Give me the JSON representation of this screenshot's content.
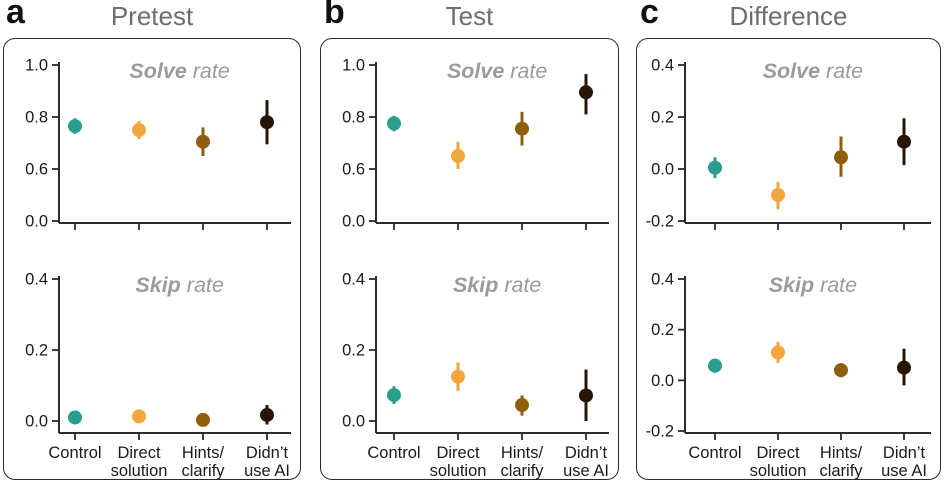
{
  "chart_data": {
    "type": "scatter",
    "subtype": "point-range (mean with error bars)",
    "conditions": [
      {
        "key": "control",
        "label_lines": [
          "Control"
        ],
        "color": "#2a9d8f"
      },
      {
        "key": "direct-solution",
        "label_lines": [
          "Direct",
          "solution"
        ],
        "color": "#f4a63e"
      },
      {
        "key": "hints-clarify",
        "label_lines": [
          "Hints/",
          "clarify"
        ],
        "color": "#8f5e0d"
      },
      {
        "key": "didnt-use-ai",
        "label_lines": [
          "Didn’t",
          "use AI"
        ],
        "color": "#271505"
      }
    ],
    "panels": [
      {
        "letter": "a",
        "title": "Pretest",
        "subplots": [
          {
            "id": "solve",
            "title_bold": "Solve",
            "title_rest": " rate",
            "ytick_labels": [
              "1.0",
              "0.8",
              "0.6",
              "0.0"
            ],
            "ytick_values": [
              1.0,
              0.8,
              0.6,
              0.0
            ],
            "axis_note": "broken scale: compressed below 0.6",
            "series": [
              {
                "condition": "Control",
                "value": 0.765,
                "ci": [
                  0.735,
                  0.795
                ]
              },
              {
                "condition": "Direct solution",
                "value": 0.75,
                "ci": [
                  0.715,
                  0.785
                ]
              },
              {
                "condition": "Hints/clarify",
                "value": 0.705,
                "ci": [
                  0.65,
                  0.76
                ]
              },
              {
                "condition": "Didn’t use AI",
                "value": 0.78,
                "ci": [
                  0.695,
                  0.865
                ]
              }
            ]
          },
          {
            "id": "skip",
            "title_bold": "Skip",
            "title_rest": " rate",
            "ytick_labels": [
              "0.4",
              "0.2",
              "0.0"
            ],
            "ytick_values": [
              0.4,
              0.2,
              0.0
            ],
            "axis_note": "linear",
            "series": [
              {
                "condition": "Control",
                "value": 0.01,
                "ci": [
                  0.003,
                  0.017
                ]
              },
              {
                "condition": "Direct solution",
                "value": 0.013,
                "ci": [
                  0.005,
                  0.021
                ]
              },
              {
                "condition": "Hints/clarify",
                "value": 0.003,
                "ci": [
                  -0.003,
                  0.009
                ]
              },
              {
                "condition": "Didn’t use AI",
                "value": 0.017,
                "ci": [
                  -0.01,
                  0.045
                ]
              }
            ]
          }
        ]
      },
      {
        "letter": "b",
        "title": "Test",
        "subplots": [
          {
            "id": "solve",
            "title_bold": "Solve",
            "title_rest": " rate",
            "ytick_labels": [
              "1.0",
              "0.8",
              "0.6",
              "0.0"
            ],
            "ytick_values": [
              1.0,
              0.8,
              0.6,
              0.0
            ],
            "axis_note": "broken scale: compressed below 0.6",
            "series": [
              {
                "condition": "Control",
                "value": 0.775,
                "ci": [
                  0.745,
                  0.805
                ]
              },
              {
                "condition": "Direct solution",
                "value": 0.65,
                "ci": [
                  0.6,
                  0.705
                ]
              },
              {
                "condition": "Hints/clarify",
                "value": 0.755,
                "ci": [
                  0.69,
                  0.82
                ]
              },
              {
                "condition": "Didn’t use AI",
                "value": 0.895,
                "ci": [
                  0.81,
                  0.965
                ]
              }
            ]
          },
          {
            "id": "skip",
            "title_bold": "Skip",
            "title_rest": " rate",
            "ytick_labels": [
              "0.4",
              "0.2",
              "0.0"
            ],
            "ytick_values": [
              0.4,
              0.2,
              0.0
            ],
            "axis_note": "linear",
            "series": [
              {
                "condition": "Control",
                "value": 0.073,
                "ci": [
                  0.048,
                  0.098
                ]
              },
              {
                "condition": "Direct solution",
                "value": 0.125,
                "ci": [
                  0.085,
                  0.165
                ]
              },
              {
                "condition": "Hints/clarify",
                "value": 0.045,
                "ci": [
                  0.015,
                  0.072
                ]
              },
              {
                "condition": "Didn’t use AI",
                "value": 0.072,
                "ci": [
                  0.0,
                  0.145
                ]
              }
            ]
          }
        ]
      },
      {
        "letter": "c",
        "title": "Difference",
        "subplots": [
          {
            "id": "solve",
            "title_bold": "Solve",
            "title_rest": " rate",
            "ytick_labels": [
              "0.4",
              "0.2",
              "0.0",
              "-0.2"
            ],
            "ytick_values": [
              0.4,
              0.2,
              0.0,
              -0.2
            ],
            "axis_note": "linear",
            "series": [
              {
                "condition": "Control",
                "value": 0.005,
                "ci": [
                  -0.035,
                  0.045
                ]
              },
              {
                "condition": "Direct solution",
                "value": -0.1,
                "ci": [
                  -0.155,
                  -0.05
                ]
              },
              {
                "condition": "Hints/clarify",
                "value": 0.045,
                "ci": [
                  -0.03,
                  0.125
                ]
              },
              {
                "condition": "Didn’t use AI",
                "value": 0.105,
                "ci": [
                  0.015,
                  0.195
                ]
              }
            ]
          },
          {
            "id": "skip",
            "title_bold": "Skip",
            "title_rest": " rate",
            "ytick_labels": [
              "0.4",
              "0.2",
              "0.0",
              "-0.2"
            ],
            "ytick_values": [
              0.4,
              0.2,
              0.0,
              -0.2
            ],
            "axis_note": "linear",
            "series": [
              {
                "condition": "Control",
                "value": 0.058,
                "ci": [
                  0.03,
                  0.085
                ]
              },
              {
                "condition": "Direct solution",
                "value": 0.11,
                "ci": [
                  0.068,
                  0.152
                ]
              },
              {
                "condition": "Hints/clarify",
                "value": 0.04,
                "ci": [
                  0.012,
                  0.068
                ]
              },
              {
                "condition": "Didn’t use AI",
                "value": 0.05,
                "ci": [
                  -0.02,
                  0.125
                ]
              }
            ]
          }
        ]
      }
    ],
    "style": {
      "axis_color": "#2b2b2b",
      "tick_label_color": "#1a1a1a",
      "panel_title_color": "#6e6e6e",
      "subplot_title_color": "#9b9b9b"
    }
  }
}
